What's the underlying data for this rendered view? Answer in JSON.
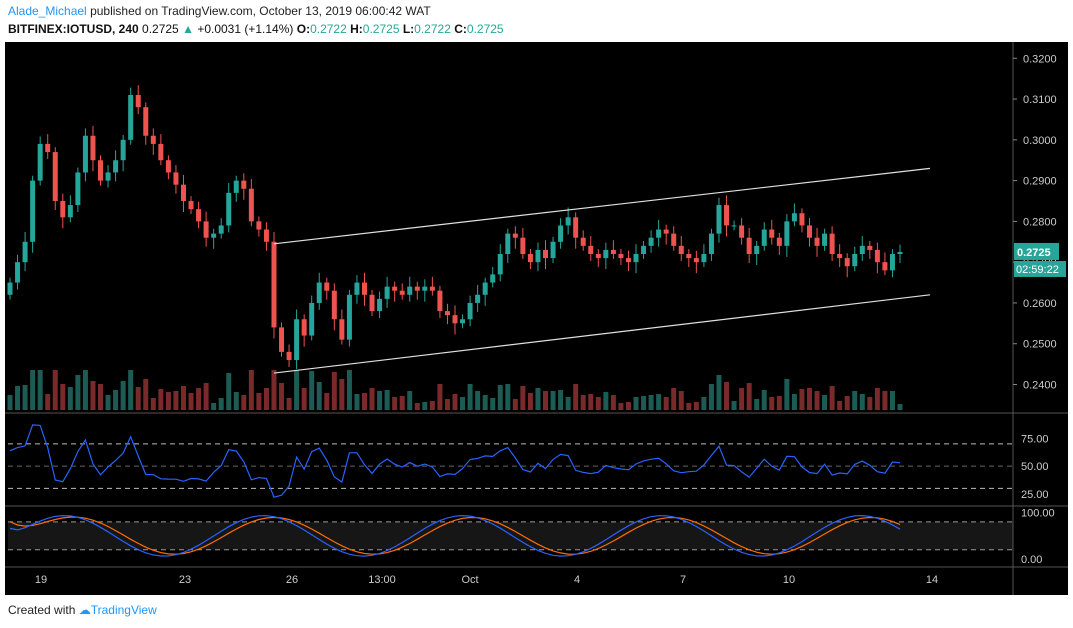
{
  "header": {
    "author": "Alade_Michael",
    "published": "published on TradingView.com, October 13, 2019 06:00:42 WAT",
    "symbol": "BITFINEX:IOTUSD, 240",
    "last": "0.2725",
    "change": "+0.0031 (+1.14%)",
    "o_label": "O:",
    "o_val": "0.2722",
    "h_label": "H:",
    "h_val": "0.2725",
    "l_label": "L:",
    "l_val": "0.2722",
    "c_label": "C:",
    "c_val": "0.2725"
  },
  "footer": {
    "created": "Created with",
    "brand": "TradingView"
  },
  "colors": {
    "up": "#26a69a",
    "down": "#ef5350",
    "rsi": "#2962ff",
    "stoch_k": "#2962ff",
    "stoch_d": "#ff6d00",
    "bg": "#000000"
  },
  "price_badge": {
    "price": "0.2725",
    "countdown": "02:59:22"
  },
  "chart_data": [
    {
      "type": "candlestick",
      "y_axis_ticks": [
        "0.3200",
        "0.3100",
        "0.3000",
        "0.2900",
        "0.2800",
        "0.2700",
        "0.2600",
        "0.2500",
        "0.2400"
      ],
      "ylim": [
        0.2335,
        0.3235
      ],
      "x_ticks": [
        "19",
        "23",
        "26",
        "13:00",
        "Oct",
        "4",
        "7",
        "10",
        "14"
      ],
      "channel_upper": [
        [
          0.2745,
          0.293
        ]
      ],
      "channel_lower": [
        [
          0.2428,
          0.262
        ]
      ],
      "closes": [
        0.265,
        0.27,
        0.275,
        0.29,
        0.299,
        0.297,
        0.285,
        0.281,
        0.284,
        0.292,
        0.301,
        0.295,
        0.29,
        0.292,
        0.295,
        0.3,
        0.311,
        0.308,
        0.301,
        0.299,
        0.295,
        0.292,
        0.289,
        0.285,
        0.283,
        0.28,
        0.276,
        0.277,
        0.279,
        0.287,
        0.29,
        0.288,
        0.28,
        0.278,
        0.275,
        0.254,
        0.248,
        0.246,
        0.256,
        0.252,
        0.26,
        0.265,
        0.263,
        0.256,
        0.251,
        0.262,
        0.265,
        0.262,
        0.258,
        0.261,
        0.264,
        0.263,
        0.262,
        0.264,
        0.263,
        0.264,
        0.263,
        0.258,
        0.257,
        0.255,
        0.256,
        0.26,
        0.262,
        0.265,
        0.267,
        0.272,
        0.277,
        0.276,
        0.272,
        0.27,
        0.273,
        0.271,
        0.275,
        0.279,
        0.281,
        0.276,
        0.274,
        0.272,
        0.271,
        0.273,
        0.272,
        0.271,
        0.27,
        0.272,
        0.274,
        0.276,
        0.278,
        0.277,
        0.274,
        0.272,
        0.271,
        0.27,
        0.272,
        0.277,
        0.284,
        0.279,
        0.279,
        0.276,
        0.272,
        0.274,
        0.278,
        0.276,
        0.274,
        0.28,
        0.282,
        0.279,
        0.276,
        0.274,
        0.277,
        0.272,
        0.271,
        0.269,
        0.272,
        0.274,
        0.273,
        0.27,
        0.268,
        0.272,
        0.2725
      ],
      "rsi": {
        "levels": [
          70,
          30
        ],
        "ticks": [
          "75.00",
          "50.00",
          "25.00"
        ]
      },
      "stoch": {
        "levels": [
          80,
          20
        ],
        "ticks": [
          "100.00",
          "0.00"
        ]
      }
    }
  ]
}
